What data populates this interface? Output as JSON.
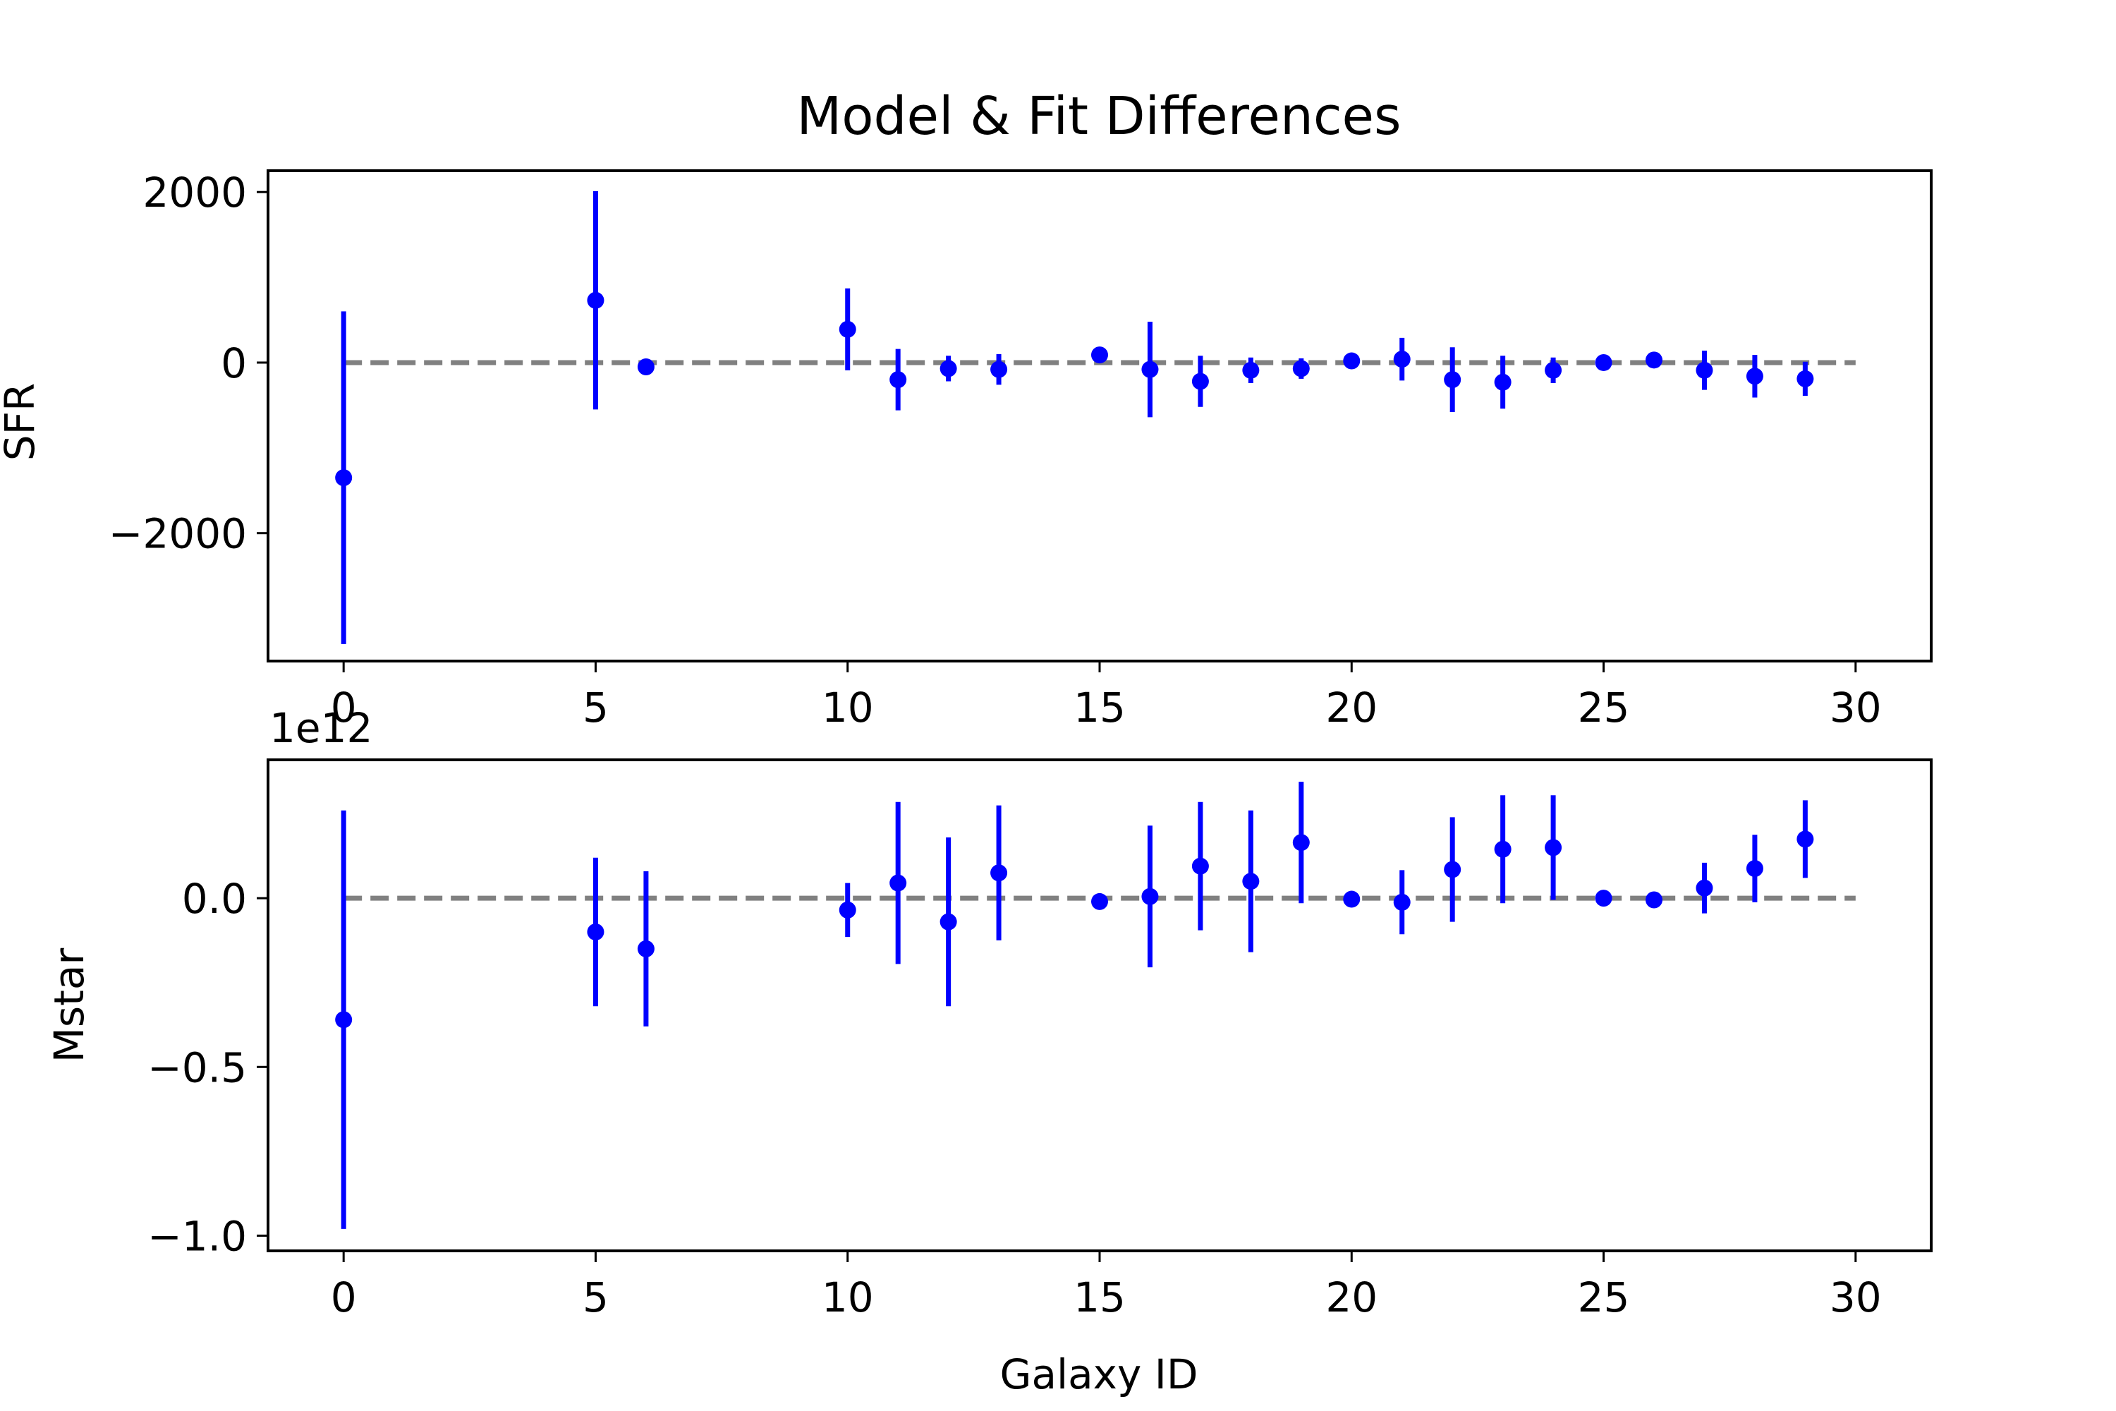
{
  "chart_data": [
    {
      "type": "scatter",
      "title": "Model & Fit Differences",
      "xlabel": "",
      "ylabel": "SFR",
      "scale_note": "",
      "xlim": [
        -1.5,
        31.5
      ],
      "ylim": [
        -3500,
        2250
      ],
      "xticks": [
        0,
        5,
        10,
        15,
        20,
        25,
        30
      ],
      "xtick_labels": [
        "0",
        "5",
        "10",
        "15",
        "20",
        "25",
        "30"
      ],
      "yticks": [
        2000,
        0,
        -2000
      ],
      "ytick_labels": [
        "2000",
        "0",
        "−2000"
      ],
      "reference_line": {
        "y": 0,
        "x_range": [
          0,
          30
        ],
        "color": "#808080",
        "style": "dashed"
      },
      "marker_color": "#0000ff",
      "grid": false,
      "points": [
        {
          "x": 0,
          "y": -1350,
          "err": 1950
        },
        {
          "x": 5,
          "y": 730,
          "err": 1280
        },
        {
          "x": 6,
          "y": -50,
          "err": 30
        },
        {
          "x": 10,
          "y": 390,
          "err": 480
        },
        {
          "x": 11,
          "y": -200,
          "err": 360
        },
        {
          "x": 12,
          "y": -70,
          "err": 150
        },
        {
          "x": 13,
          "y": -80,
          "err": 180
        },
        {
          "x": 15,
          "y": 90,
          "err": 30
        },
        {
          "x": 16,
          "y": -80,
          "err": 560
        },
        {
          "x": 17,
          "y": -220,
          "err": 300
        },
        {
          "x": 18,
          "y": -90,
          "err": 150
        },
        {
          "x": 19,
          "y": -70,
          "err": 120
        },
        {
          "x": 20,
          "y": 20,
          "err": 30
        },
        {
          "x": 21,
          "y": 40,
          "err": 250
        },
        {
          "x": 22,
          "y": -200,
          "err": 380
        },
        {
          "x": 23,
          "y": -230,
          "err": 310
        },
        {
          "x": 24,
          "y": -90,
          "err": 150
        },
        {
          "x": 25,
          "y": 0,
          "err": 30
        },
        {
          "x": 26,
          "y": 30,
          "err": 30
        },
        {
          "x": 27,
          "y": -90,
          "err": 230
        },
        {
          "x": 28,
          "y": -160,
          "err": 250
        },
        {
          "x": 29,
          "y": -190,
          "err": 200
        }
      ]
    },
    {
      "type": "scatter",
      "title": "",
      "xlabel": "Galaxy ID",
      "ylabel": "Mstar",
      "scale_note": "1e12",
      "xlim": [
        -1.5,
        31.5
      ],
      "ylim": [
        -1.045,
        0.41
      ],
      "xticks": [
        0,
        5,
        10,
        15,
        20,
        25,
        30
      ],
      "xtick_labels": [
        "0",
        "5",
        "10",
        "15",
        "20",
        "25",
        "30"
      ],
      "yticks": [
        0.0,
        -0.5,
        -1.0
      ],
      "ytick_labels": [
        "0.0",
        "−0.5",
        "−1.0"
      ],
      "reference_line": {
        "y": 0,
        "x_range": [
          0,
          30
        ],
        "color": "#808080",
        "style": "dashed"
      },
      "marker_color": "#0000ff",
      "grid": false,
      "points": [
        {
          "x": 0,
          "y": -0.36,
          "err": 0.62
        },
        {
          "x": 5,
          "y": -0.1,
          "err": 0.22
        },
        {
          "x": 6,
          "y": -0.15,
          "err": 0.23
        },
        {
          "x": 10,
          "y": -0.035,
          "err": 0.08
        },
        {
          "x": 11,
          "y": 0.045,
          "err": 0.24
        },
        {
          "x": 12,
          "y": -0.07,
          "err": 0.25
        },
        {
          "x": 13,
          "y": 0.075,
          "err": 0.2
        },
        {
          "x": 15,
          "y": -0.01,
          "err": 0.01
        },
        {
          "x": 16,
          "y": 0.005,
          "err": 0.21
        },
        {
          "x": 17,
          "y": 0.095,
          "err": 0.19
        },
        {
          "x": 18,
          "y": 0.05,
          "err": 0.21
        },
        {
          "x": 19,
          "y": 0.165,
          "err": 0.18
        },
        {
          "x": 20,
          "y": -0.003,
          "err": 0.01
        },
        {
          "x": 21,
          "y": -0.012,
          "err": 0.095
        },
        {
          "x": 22,
          "y": 0.085,
          "err": 0.155
        },
        {
          "x": 23,
          "y": 0.145,
          "err": 0.16
        },
        {
          "x": 24,
          "y": 0.15,
          "err": 0.155
        },
        {
          "x": 25,
          "y": 0.0,
          "err": 0.01
        },
        {
          "x": 26,
          "y": -0.005,
          "err": 0.02
        },
        {
          "x": 27,
          "y": 0.03,
          "err": 0.075
        },
        {
          "x": 28,
          "y": 0.088,
          "err": 0.1
        },
        {
          "x": 29,
          "y": 0.175,
          "err": 0.115
        }
      ]
    }
  ]
}
